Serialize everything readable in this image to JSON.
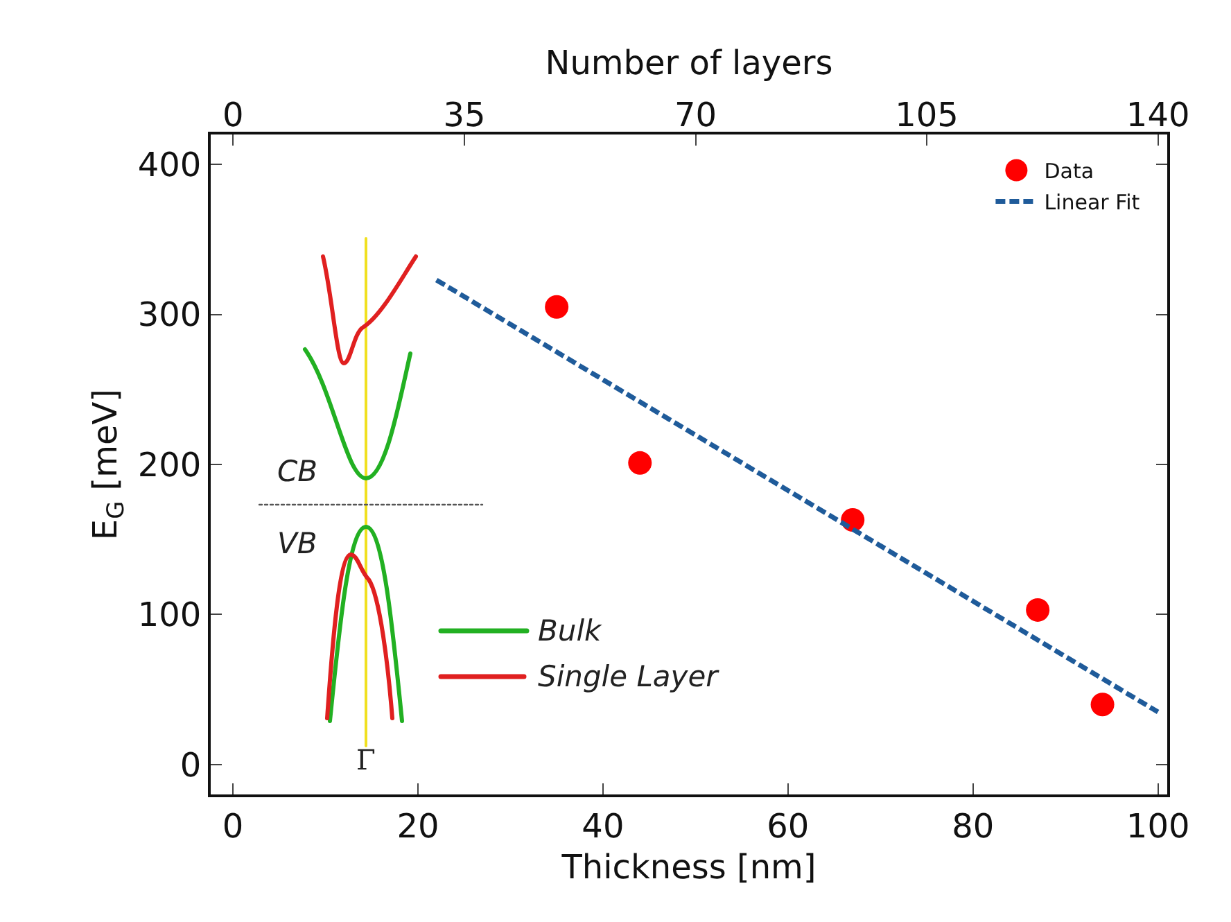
{
  "chart_data": {
    "type": "scatter",
    "xlabel": "Thickness [nm]",
    "ylabel": "E$_{G}$ [meV]",
    "x2label": "Number of layers",
    "xlim": [
      -2.4,
      101
    ],
    "xticks": [
      0,
      20,
      40,
      60,
      80,
      100
    ],
    "ylim": [
      -20,
      420
    ],
    "yticks": [
      0,
      100,
      200,
      300,
      400
    ],
    "x2lim": [
      -3.4,
      141.4
    ],
    "x2ticks": [
      0,
      35,
      70,
      105,
      140
    ],
    "x": [
      35,
      44,
      67,
      87,
      94
    ],
    "series": [
      {
        "name": "Data",
        "color": "#ff0000",
        "marker": "circle",
        "values": [
          305,
          201,
          163,
          103,
          40
        ]
      },
      {
        "name": "Linear Fit",
        "type": "line",
        "color": "#1f5b9a",
        "line_style": "dashed",
        "x": [
          22,
          100
        ],
        "values": [
          323,
          35
        ]
      }
    ],
    "annotations": [
      "CB",
      "VB",
      "Bulk",
      "Single Layer",
      "Γ"
    ],
    "legend": "top right",
    "grid": false
  }
}
